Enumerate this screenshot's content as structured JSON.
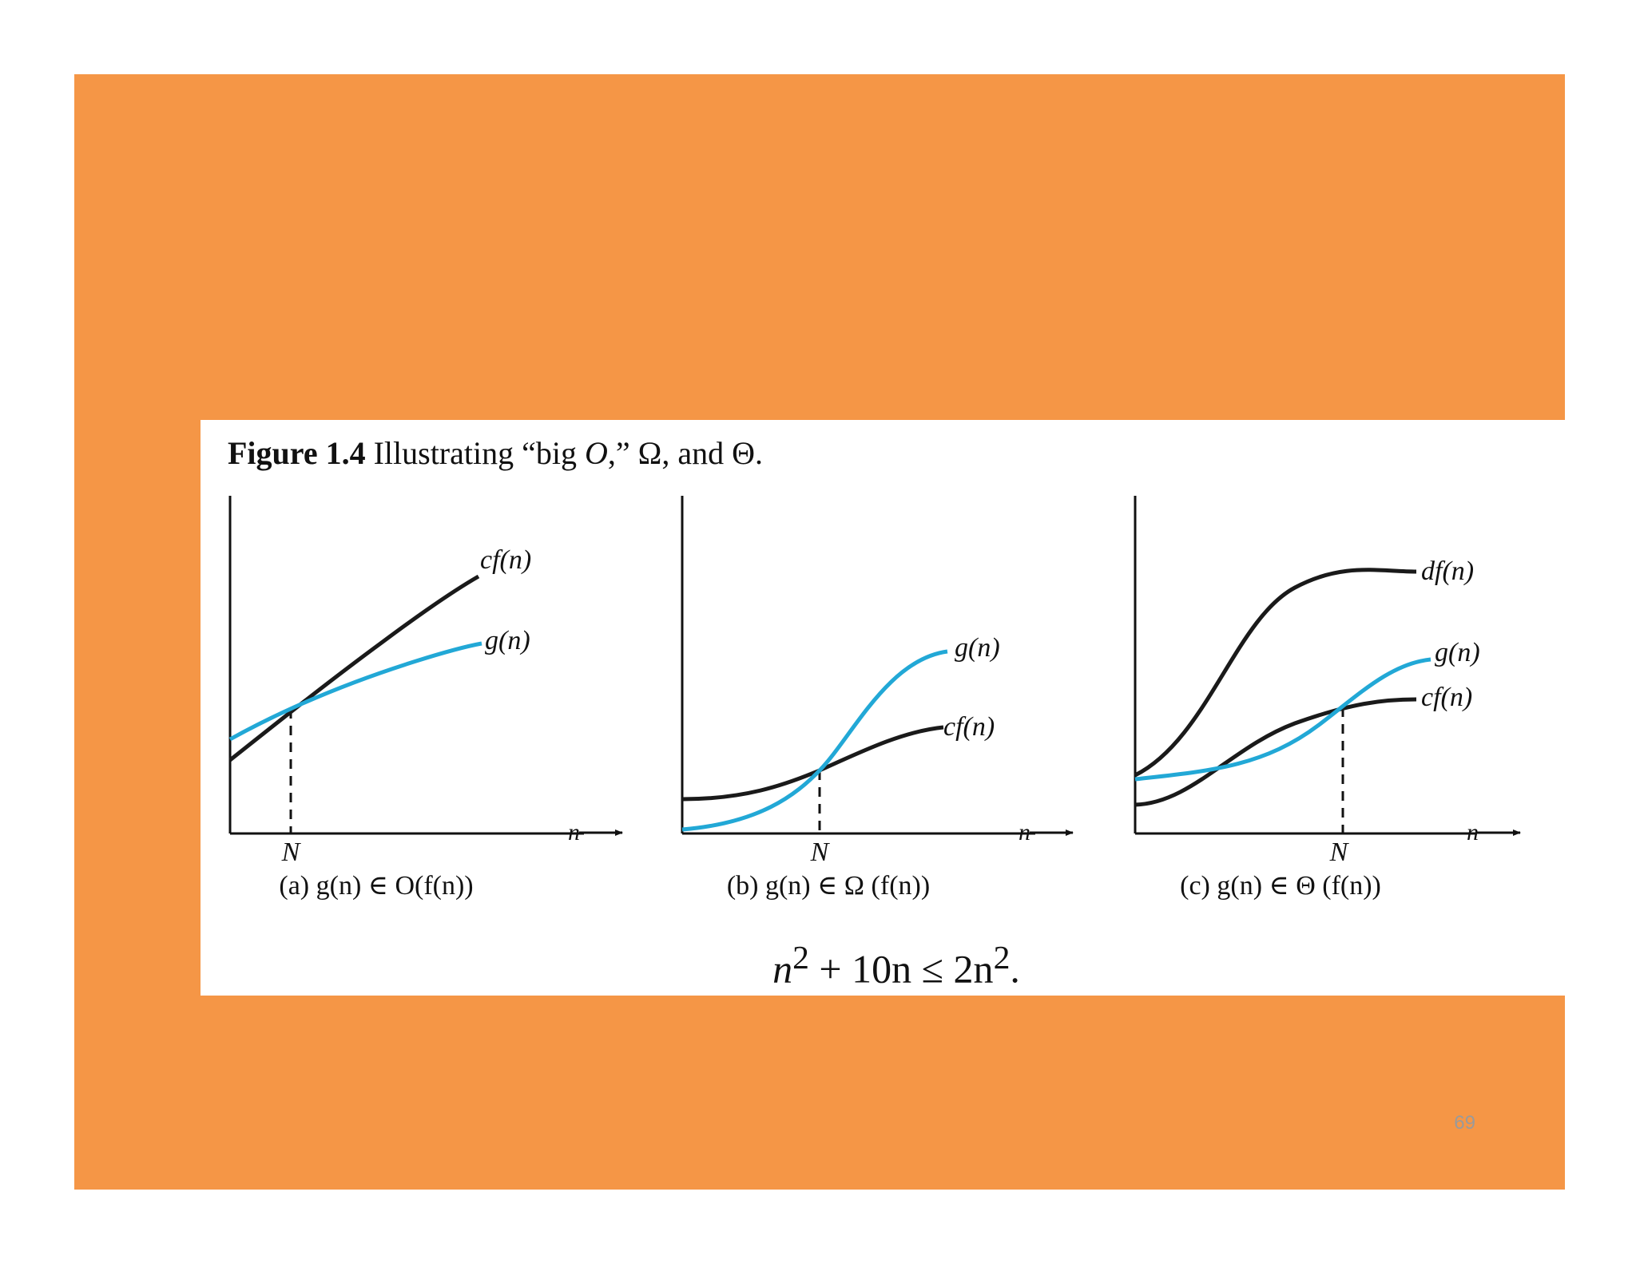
{
  "slide": {
    "background_color": "#f59646",
    "page_number": "69"
  },
  "figure": {
    "caption_label": "Figure 1.4",
    "caption_text_1": " Illustrating “big ",
    "caption_O": "O",
    "caption_text_2": ",” Ω, and Θ."
  },
  "graphs": {
    "colors": {
      "f_curve": "#1a1a1a",
      "g_curve": "#22a8d6"
    },
    "axis_label": "n",
    "threshold_label": "N",
    "panels": [
      {
        "id": "a",
        "caption": "(a) g(n) ∈ O(f(n))",
        "upper_label": "cf(n)",
        "lower_label": "g(n)"
      },
      {
        "id": "b",
        "caption": "(b) g(n) ∈ Ω (f(n))",
        "upper_label": "g(n)",
        "lower_label": "cf(n)"
      },
      {
        "id": "c",
        "caption": "(c) g(n) ∈ Θ (f(n))",
        "upper_label": "df(n)",
        "middle_label": "g(n)",
        "lower_label": "cf(n)"
      }
    ]
  },
  "equation": {
    "lhs_base": "n",
    "lhs_exp": "2",
    "middle": " + 10n ≤ 2n",
    "rhs_exp": "2",
    "end": "."
  }
}
